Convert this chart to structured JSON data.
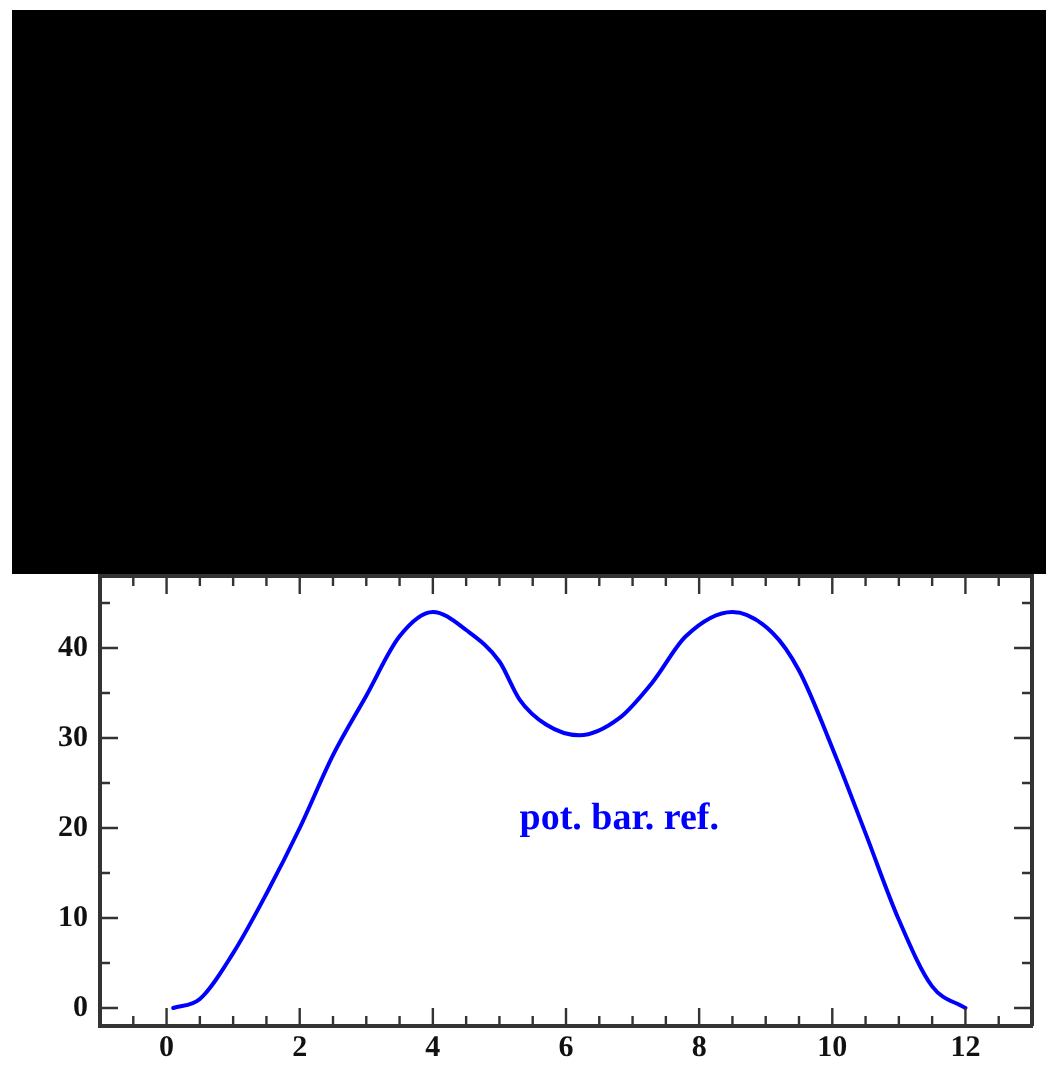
{
  "chart_data": {
    "type": "line",
    "x": [
      0.1,
      0.5,
      1.0,
      1.5,
      2.0,
      2.5,
      3.0,
      3.5,
      4.0,
      4.5,
      5.0,
      5.3,
      5.7,
      6.2,
      6.8,
      7.3,
      7.8,
      8.5,
      9.1,
      9.5,
      10.0,
      10.5,
      11.0,
      11.5,
      12.0
    ],
    "series": [
      {
        "color": "#0000ff",
        "values": [
          0,
          1,
          6.1,
          12.7,
          20,
          28.1,
          34.7,
          41.3,
          44,
          42,
          38.5,
          34.3,
          31.5,
          30.3,
          32.2,
          36.2,
          41.3,
          44,
          41.7,
          37.5,
          28.9,
          19.4,
          9.8,
          2.4,
          0
        ]
      }
    ],
    "xlim": [
      -1,
      13
    ],
    "ylim": [
      -2,
      48
    ],
    "xticks": [
      {
        "value": -0.5,
        "label": null
      },
      0,
      {
        "value": 0.5,
        "label": null
      },
      {
        "value": 1,
        "label": null
      },
      {
        "value": 1.5,
        "label": null
      },
      2,
      {
        "value": 2.5,
        "label": null
      },
      {
        "value": 3,
        "label": null
      },
      {
        "value": 3.5,
        "label": null
      },
      4,
      {
        "value": 4.5,
        "label": null
      },
      {
        "value": 5,
        "label": null
      },
      {
        "value": 5.5,
        "label": null
      },
      6,
      {
        "value": 6.5,
        "label": null
      },
      {
        "value": 7,
        "label": null
      },
      {
        "value": 7.5,
        "label": null
      },
      8,
      {
        "value": 8.5,
        "label": null
      },
      {
        "value": 9,
        "label": null
      },
      {
        "value": 9.5,
        "label": null
      },
      10,
      {
        "value": 10.5,
        "label": null
      },
      {
        "value": 11,
        "label": null
      },
      {
        "value": 11.5,
        "label": null
      },
      12,
      {
        "value": 12.5,
        "label": null
      }
    ],
    "yticks": [
      0,
      {
        "value": 5,
        "label": null
      },
      10,
      {
        "value": 15,
        "label": null
      },
      20,
      {
        "value": 25,
        "label": null
      },
      30,
      {
        "value": 35,
        "label": null
      },
      40,
      {
        "value": 45,
        "label": null
      }
    ],
    "annotations": [
      "pot. bar. ref."
    ],
    "grid": false,
    "legend": false,
    "marker": "none",
    "line_style": "solid"
  }
}
